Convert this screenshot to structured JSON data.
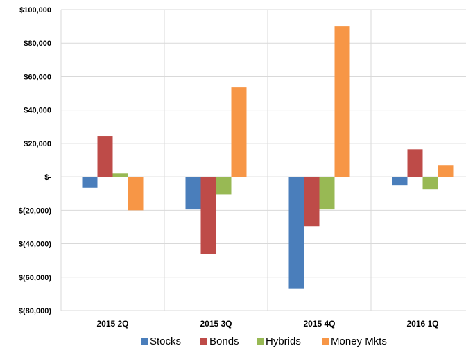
{
  "chart_data": {
    "type": "bar",
    "title": "",
    "xlabel": "",
    "ylabel": "",
    "categories": [
      "2015 2Q",
      "2015 3Q",
      "2015 4Q",
      "2016 1Q"
    ],
    "series": [
      {
        "name": "Stocks",
        "color": "#4a7ebb",
        "values": [
          -6500,
          -19500,
          -67000,
          -5000
        ]
      },
      {
        "name": "Bonds",
        "color": "#be4b48",
        "values": [
          24500,
          -46000,
          -29500,
          16500
        ]
      },
      {
        "name": "Hybrids",
        "color": "#98b954",
        "values": [
          2000,
          -10500,
          -19500,
          -7500
        ]
      },
      {
        "name": "Money Mkts",
        "color": "#f79646",
        "values": [
          -20000,
          53500,
          90000,
          7000
        ]
      }
    ],
    "ylim": [
      -80000,
      100000
    ],
    "yticks": [
      100000,
      80000,
      60000,
      40000,
      20000,
      0,
      -20000,
      -40000,
      -60000,
      -80000
    ],
    "ytick_labels": [
      "$100,000",
      "$80,000",
      "$60,000",
      "$40,000",
      "$20,000",
      "$-",
      "$(20,000)",
      "$(40,000)",
      "$(60,000)",
      "$(80,000)"
    ],
    "grid": true,
    "legend_position": "bottom"
  }
}
